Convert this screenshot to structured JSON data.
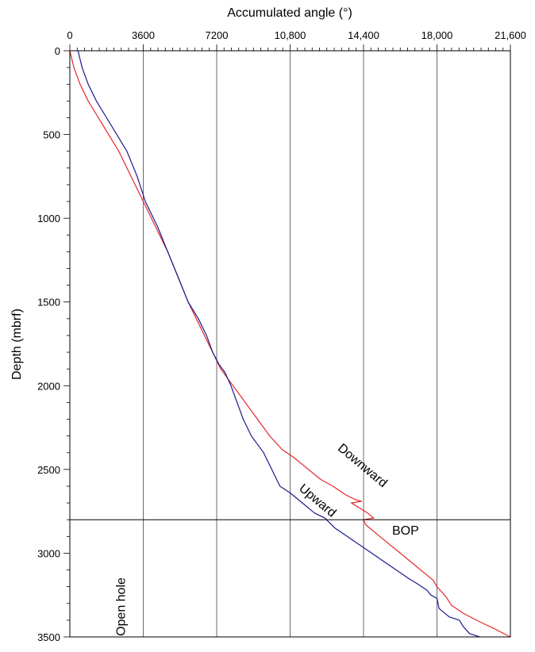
{
  "chart_data": {
    "type": "line",
    "xlabel": "Accumulated angle (°)",
    "ylabel": "Depth (mbrf)",
    "xlim": [
      0,
      21600
    ],
    "ylim": [
      0,
      3500
    ],
    "y_inverted": true,
    "x_axis_position": "top",
    "grid": "vertical",
    "x_ticks": [
      0,
      3600,
      7200,
      10800,
      14400,
      18000,
      21600
    ],
    "x_tick_labels": [
      "0",
      "3600",
      "7200",
      "10,800",
      "14,400",
      "18,000",
      "21,600"
    ],
    "y_ticks": [
      0,
      500,
      1000,
      1500,
      2000,
      2500,
      3000,
      3500
    ],
    "y_tick_labels": [
      "0",
      "500",
      "1000",
      "1500",
      "2000",
      "2500",
      "3000",
      "3500"
    ],
    "reference_line": {
      "depth": 2800,
      "label": "BOP",
      "color": "#000000"
    },
    "series": [
      {
        "name": "Downward",
        "color": "#e8262a",
        "x": [
          0,
          200,
          500,
          900,
          1400,
          1900,
          2400,
          3000,
          3600,
          4200,
          4800,
          5300,
          5800,
          6200,
          6800,
          7000,
          7400,
          8000,
          8600,
          9200,
          9800,
          10400,
          11000,
          11700,
          12300,
          12900,
          13500,
          14000,
          14300,
          13800,
          14200,
          14600,
          14900,
          14400,
          14500,
          15000,
          15600,
          16200,
          16800,
          17400,
          17800,
          18000,
          18300,
          18500,
          18700,
          19300,
          20100,
          20800,
          21600
        ],
        "y": [
          0,
          100,
          200,
          300,
          400,
          500,
          600,
          750,
          900,
          1050,
          1200,
          1350,
          1500,
          1600,
          1750,
          1800,
          1900,
          2000,
          2100,
          2200,
          2300,
          2380,
          2430,
          2500,
          2560,
          2600,
          2650,
          2680,
          2690,
          2700,
          2730,
          2760,
          2790,
          2800,
          2830,
          2880,
          2940,
          3000,
          3060,
          3120,
          3160,
          3200,
          3240,
          3270,
          3310,
          3360,
          3410,
          3450,
          3500
        ]
      },
      {
        "name": "Upward",
        "color": "#1a1a8c",
        "x": [
          400,
          600,
          900,
          1300,
          1800,
          2300,
          2800,
          3300,
          3700,
          4300,
          4800,
          5300,
          5800,
          6300,
          6700,
          7000,
          7300,
          7600,
          7900,
          8200,
          8500,
          8900,
          9200,
          9500,
          9900,
          10300,
          10800,
          11400,
          12000,
          12500,
          13000,
          13600,
          14200,
          14800,
          15400,
          16000,
          16600,
          17000,
          17500,
          17700,
          18000,
          18100,
          18600,
          19100,
          19300,
          19600,
          20100
        ],
        "y": [
          0,
          100,
          200,
          300,
          400,
          500,
          600,
          750,
          900,
          1050,
          1200,
          1350,
          1500,
          1600,
          1700,
          1800,
          1870,
          1920,
          2000,
          2100,
          2200,
          2300,
          2350,
          2400,
          2500,
          2600,
          2640,
          2700,
          2760,
          2790,
          2850,
          2900,
          2950,
          3000,
          3050,
          3100,
          3150,
          3180,
          3220,
          3250,
          3270,
          3330,
          3380,
          3400,
          3440,
          3480,
          3510
        ]
      }
    ],
    "annotations": [
      {
        "text": "Downward",
        "x": 13100,
        "y": 2380,
        "rotation": 40
      },
      {
        "text": "Upward",
        "x": 11200,
        "y": 2620,
        "rotation": 40
      },
      {
        "text": "BOP",
        "x": 15800,
        "y": 2890,
        "rotation": 0
      },
      {
        "text": "Open hole",
        "x": 2700,
        "y": 3320,
        "rotation": -90
      }
    ]
  }
}
